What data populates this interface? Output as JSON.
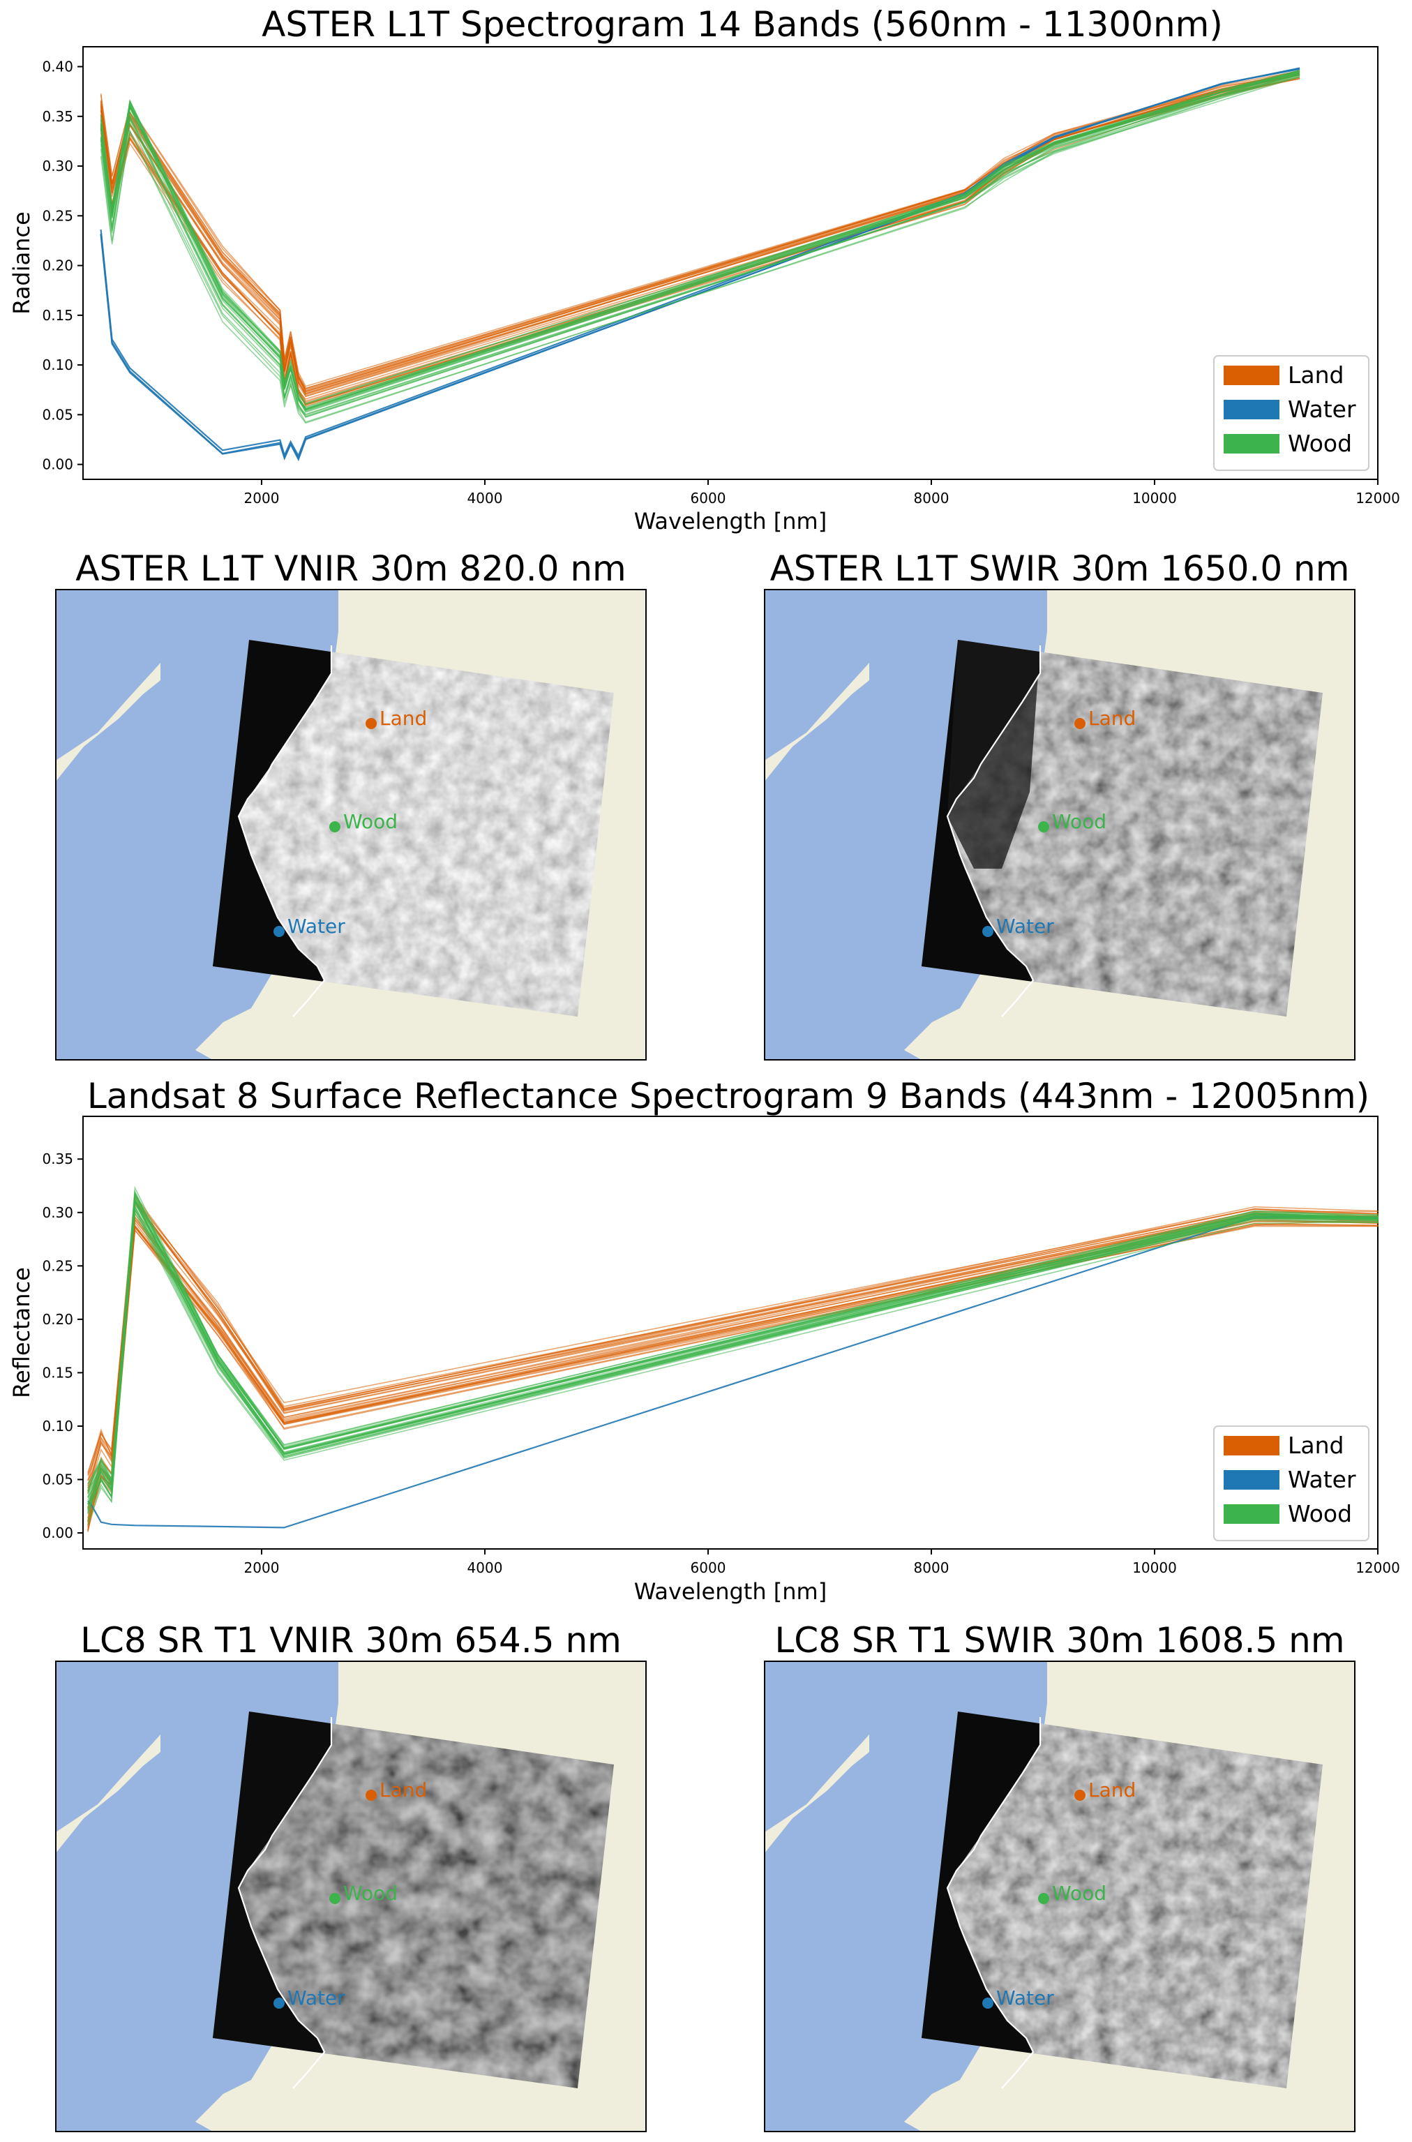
{
  "colors": {
    "land": "#d95f02",
    "water": "#1f77b4",
    "wood": "#3cb44b",
    "sea": "#98b5e2",
    "shore": "#efeddb",
    "boundary": "#ffffff"
  },
  "chart_data": [
    {
      "type": "line",
      "title": "ASTER L1T Spectrogram 14 Bands (560nm - 11300nm)",
      "xlabel": "Wavelength [nm]",
      "ylabel": "Radiance",
      "xlim": [
        400,
        12000
      ],
      "ylim": [
        -0.015,
        0.42
      ],
      "xticks": [
        "2000",
        "4000",
        "6000",
        "8000",
        "10000",
        "12000"
      ],
      "xtick_values": [
        2000,
        4000,
        6000,
        8000,
        10000,
        12000
      ],
      "yticks": [
        "0.00",
        "0.05",
        "0.10",
        "0.15",
        "0.20",
        "0.25",
        "0.30",
        "0.35",
        "0.40"
      ],
      "ytick_values": [
        0.0,
        0.05,
        0.1,
        0.15,
        0.2,
        0.25,
        0.3,
        0.35,
        0.4
      ],
      "legend": [
        "Land",
        "Water",
        "Wood"
      ],
      "legend_position": "lower-right",
      "x": [
        560,
        660,
        820,
        1650,
        2165,
        2205,
        2260,
        2330,
        2395,
        8300,
        8650,
        9100,
        10600,
        11300
      ],
      "series": [
        {
          "name": "Land",
          "values": [
            0.35,
            0.27,
            0.34,
            0.2,
            0.14,
            0.09,
            0.12,
            0.08,
            0.068,
            0.27,
            0.298,
            0.325,
            0.375,
            0.392
          ],
          "spread": 0.022,
          "count": 22
        },
        {
          "name": "Water",
          "values": [
            0.23,
            0.12,
            0.092,
            0.01,
            0.02,
            0.006,
            0.02,
            0.005,
            0.025,
            0.27,
            0.3,
            0.328,
            0.382,
            0.398
          ],
          "spread": 0.006,
          "count": 3
        },
        {
          "name": "Wood",
          "values": [
            0.33,
            0.24,
            0.35,
            0.16,
            0.1,
            0.07,
            0.09,
            0.06,
            0.05,
            0.265,
            0.293,
            0.318,
            0.372,
            0.392
          ],
          "spread": 0.02,
          "count": 20
        }
      ]
    },
    {
      "type": "line",
      "title": "Landsat 8 Surface Reflectance Spectrogram 9 Bands (443nm - 12005nm)",
      "xlabel": "Wavelength [nm]",
      "ylabel": "Reflectance",
      "xlim": [
        400,
        12000
      ],
      "ylim": [
        -0.015,
        0.39
      ],
      "xticks": [
        "2000",
        "4000",
        "6000",
        "8000",
        "10000",
        "12000"
      ],
      "xtick_values": [
        2000,
        4000,
        6000,
        8000,
        10000,
        12000
      ],
      "yticks": [
        "0.00",
        "0.05",
        "0.10",
        "0.15",
        "0.20",
        "0.25",
        "0.30",
        "0.35"
      ],
      "ytick_values": [
        0.0,
        0.05,
        0.1,
        0.15,
        0.2,
        0.25,
        0.3,
        0.35
      ],
      "legend": [
        "Land",
        "Water",
        "Wood"
      ],
      "legend_position": "lower-right",
      "x": [
        443,
        482,
        562,
        655,
        865,
        1609,
        2201,
        10895,
        12005
      ],
      "series": [
        {
          "name": "Land",
          "values": [
            0.03,
            0.045,
            0.075,
            0.06,
            0.3,
            0.2,
            0.11,
            0.298,
            0.295
          ],
          "spread": 0.03,
          "count": 24
        },
        {
          "name": "Water",
          "values": [
            0.03,
            0.025,
            0.01,
            0.008,
            0.007,
            0.006,
            0.005,
            0.296,
            0.295
          ],
          "spread": 0.0,
          "count": 1
        },
        {
          "name": "Wood",
          "values": [
            0.025,
            0.035,
            0.055,
            0.04,
            0.31,
            0.16,
            0.075,
            0.296,
            0.294
          ],
          "spread": 0.02,
          "count": 24
        }
      ]
    }
  ],
  "maps": [
    {
      "title": "ASTER L1T VNIR 30m 820.0 nm",
      "style": "vnir-bright"
    },
    {
      "title": "ASTER L1T SWIR 30m 1650.0 nm",
      "style": "swir"
    },
    {
      "title": "LC8 SR T1 VNIR 30m 654.5 nm",
      "style": "vnir-dark"
    },
    {
      "title": "LC8 SR T1 SWIR 30m 1608.5 nm",
      "style": "swir-lc8"
    }
  ],
  "map_labels": {
    "land": "Land",
    "wood": "Wood",
    "water": "Water"
  }
}
